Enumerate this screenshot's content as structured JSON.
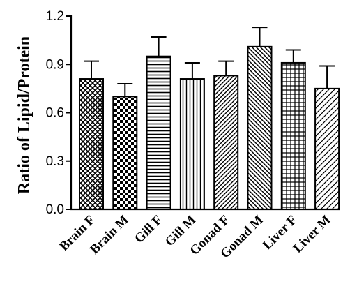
{
  "chart_data": {
    "type": "bar",
    "title": "",
    "xlabel": "",
    "ylabel": "Ratio of Lipid/Protein",
    "ylim": [
      0,
      1.2
    ],
    "yticks": [
      "0.0",
      "0.3",
      "0.6",
      "0.9",
      "1.2"
    ],
    "categories": [
      "Brain F",
      "Brain M",
      "Gill F",
      "Gill M",
      "Gonad F",
      "Gonad M",
      "Liver F",
      "Liver M"
    ],
    "values": [
      0.81,
      0.7,
      0.95,
      0.81,
      0.83,
      1.01,
      0.91,
      0.75
    ],
    "errors": [
      0.11,
      0.08,
      0.12,
      0.1,
      0.09,
      0.12,
      0.08,
      0.14
    ],
    "fill_patterns": [
      "crosshatch-diagonal",
      "checker",
      "horizontal",
      "vertical",
      "diagonal-up",
      "diagonal-down",
      "grid",
      "diagonal-up-sparse"
    ],
    "grid": false,
    "colors": {
      "stroke": "#000000",
      "background": "#ffffff"
    }
  }
}
